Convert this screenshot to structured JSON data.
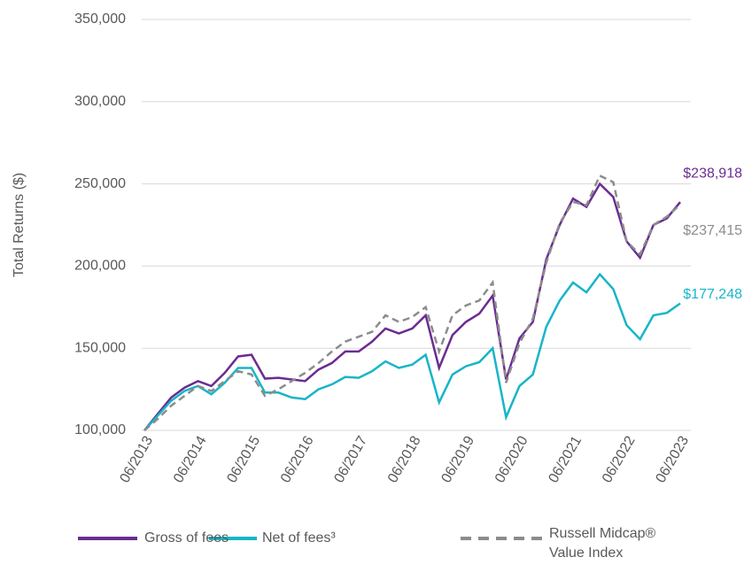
{
  "chart_data": {
    "type": "line",
    "ylabel": "Total Returns ($)",
    "categories": [
      "06/2013",
      null,
      null,
      null,
      "06/2014",
      null,
      null,
      null,
      "06/2015",
      null,
      null,
      null,
      "06/2016",
      null,
      null,
      null,
      "06/2017",
      null,
      null,
      null,
      "06/2018",
      null,
      null,
      null,
      "06/2019",
      null,
      null,
      null,
      "06/2020",
      null,
      null,
      null,
      "06/2021",
      null,
      null,
      null,
      "06/2022",
      null,
      null,
      null,
      "06/2023"
    ],
    "series": [
      {
        "name": "Gross of fees",
        "color": "#6b2c91",
        "dash": false,
        "values": [
          100000,
          110000,
          120000,
          126000,
          130000,
          127000,
          135000,
          145000,
          146000,
          131500,
          132000,
          131000,
          130000,
          137000,
          141000,
          148000,
          148000,
          154000,
          162000,
          159000,
          162000,
          170000,
          138000,
          158000,
          166000,
          171000,
          182000,
          131000,
          156000,
          166000,
          204000,
          225000,
          241000,
          236000,
          250000,
          242000,
          215000,
          205000,
          225000,
          229000,
          238918
        ],
        "value_labels": [
          null,
          null,
          null,
          null,
          null,
          null,
          null,
          null,
          null,
          null,
          null,
          null,
          null,
          null,
          null,
          null,
          null,
          null,
          null,
          null,
          null,
          null,
          null,
          null,
          null,
          null,
          null,
          null,
          null,
          null,
          null,
          null,
          null,
          null,
          null,
          null,
          null,
          null,
          null,
          null,
          "$238,918"
        ]
      },
      {
        "name": "Net of fees³",
        "color": "#17b5c8",
        "dash": false,
        "values": [
          100000,
          109000,
          118000,
          124000,
          127000,
          122000,
          129000,
          138000,
          138000,
          123000,
          123000,
          120000,
          119000,
          125000,
          128000,
          132500,
          132000,
          136000,
          142000,
          138000,
          140000,
          146000,
          117000,
          134000,
          139000,
          141500,
          150000,
          108000,
          127000,
          134000,
          163000,
          179000,
          190000,
          184000,
          195000,
          186000,
          164000,
          155500,
          170000,
          171500,
          177248
        ],
        "value_labels": [
          null,
          null,
          null,
          null,
          null,
          null,
          null,
          null,
          null,
          null,
          null,
          null,
          null,
          null,
          null,
          null,
          null,
          null,
          null,
          null,
          null,
          null,
          null,
          null,
          null,
          null,
          null,
          null,
          null,
          null,
          null,
          null,
          null,
          null,
          null,
          null,
          null,
          null,
          null,
          null,
          "$177,248"
        ]
      },
      {
        "name": "Russell Midcap® Value Index",
        "color": "#8c8c8c",
        "dash": true,
        "values": [
          100000,
          107000,
          115000,
          121000,
          127000,
          124000,
          130000,
          136000,
          134000,
          121000,
          125000,
          130000,
          135000,
          141000,
          148000,
          154000,
          157000,
          160000,
          170000,
          166000,
          169000,
          175000,
          148000,
          170000,
          176000,
          179000,
          190000,
          129000,
          153000,
          168000,
          202000,
          226000,
          239000,
          237000,
          255000,
          251000,
          215000,
          207000,
          225000,
          230000,
          237415
        ],
        "value_labels": [
          null,
          null,
          null,
          null,
          null,
          null,
          null,
          null,
          null,
          null,
          null,
          null,
          null,
          null,
          null,
          null,
          null,
          null,
          null,
          null,
          null,
          null,
          null,
          null,
          null,
          null,
          null,
          null,
          null,
          null,
          null,
          null,
          null,
          null,
          null,
          null,
          null,
          null,
          null,
          null,
          "$237,415"
        ]
      }
    ],
    "ylim": [
      100000,
      350000
    ],
    "yticks": [
      {
        "value": 100000,
        "label": "100,000"
      },
      {
        "value": 150000,
        "label": "150,000"
      },
      {
        "value": 200000,
        "label": "200,000"
      },
      {
        "value": 250000,
        "label": "250,000"
      },
      {
        "value": 300000,
        "label": "300,000"
      },
      {
        "value": 350000,
        "label": "350,000"
      }
    ],
    "grid": true
  }
}
